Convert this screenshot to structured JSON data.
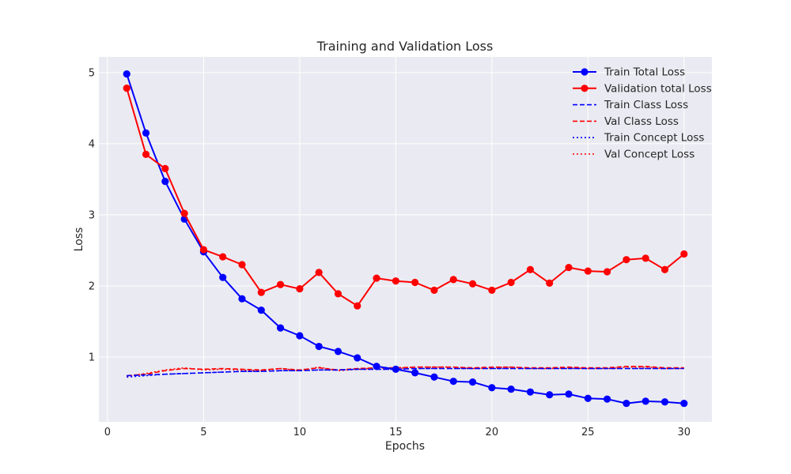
{
  "chart_data": {
    "type": "line",
    "title": "Training and Validation Loss",
    "xlabel": "Epochs",
    "ylabel": "Loss",
    "xlim": [
      -0.45,
      31.45
    ],
    "ylim": [
      0.09,
      5.22
    ],
    "xticks": [
      0,
      5,
      10,
      15,
      20,
      25,
      30
    ],
    "yticks": [
      1,
      2,
      3,
      4,
      5
    ],
    "grid": true,
    "legend_position": "top-right",
    "background_color": "#eaeaf2",
    "x": [
      1,
      2,
      3,
      4,
      5,
      6,
      7,
      8,
      9,
      10,
      11,
      12,
      13,
      14,
      15,
      16,
      17,
      18,
      19,
      20,
      21,
      22,
      23,
      24,
      25,
      26,
      27,
      28,
      29,
      30
    ],
    "series": [
      {
        "name": "Train Total Loss",
        "color": "#0000ff",
        "style": "solid",
        "marker": true,
        "values": [
          4.98,
          4.15,
          3.47,
          2.94,
          2.48,
          2.12,
          1.82,
          1.66,
          1.41,
          1.3,
          1.15,
          1.08,
          0.99,
          0.87,
          0.83,
          0.78,
          0.72,
          0.66,
          0.65,
          0.57,
          0.55,
          0.51,
          0.47,
          0.48,
          0.42,
          0.41,
          0.35,
          0.38,
          0.37,
          0.35
        ]
      },
      {
        "name": "Validation total Loss",
        "color": "#ff0000",
        "style": "solid",
        "marker": true,
        "values": [
          4.78,
          3.85,
          3.65,
          3.02,
          2.51,
          2.41,
          2.3,
          1.91,
          2.02,
          1.96,
          2.19,
          1.89,
          1.72,
          2.11,
          2.07,
          2.05,
          1.94,
          2.09,
          2.03,
          1.94,
          2.05,
          2.23,
          2.04,
          2.26,
          2.21,
          2.2,
          2.37,
          2.39,
          2.23,
          2.45
        ]
      },
      {
        "name": "Train Class Loss",
        "color": "#0000ff",
        "style": "dashed",
        "marker": false,
        "values": [
          0.74,
          0.75,
          0.76,
          0.77,
          0.78,
          0.79,
          0.8,
          0.8,
          0.81,
          0.81,
          0.82,
          0.82,
          0.83,
          0.83,
          0.83,
          0.84,
          0.84,
          0.84,
          0.84,
          0.84,
          0.84,
          0.84,
          0.84,
          0.84,
          0.84,
          0.84,
          0.84,
          0.84,
          0.84,
          0.84
        ]
      },
      {
        "name": "Val Class Loss",
        "color": "#ff0000",
        "style": "dashed",
        "marker": false,
        "values": [
          0.74,
          0.76,
          0.81,
          0.84,
          0.83,
          0.84,
          0.83,
          0.82,
          0.84,
          0.82,
          0.85,
          0.82,
          0.84,
          0.85,
          0.85,
          0.86,
          0.86,
          0.86,
          0.85,
          0.86,
          0.86,
          0.85,
          0.85,
          0.86,
          0.85,
          0.85,
          0.87,
          0.87,
          0.85,
          0.85
        ]
      },
      {
        "name": "Train Concept Loss",
        "color": "#0000ff",
        "style": "dotted",
        "marker": false,
        "values": [
          0.72,
          0.74,
          0.76,
          0.77,
          0.78,
          0.79,
          0.8,
          0.8,
          0.81,
          0.81,
          0.82,
          0.82,
          0.83,
          0.83,
          0.83,
          0.84,
          0.84,
          0.84,
          0.84,
          0.84,
          0.84,
          0.84,
          0.84,
          0.84,
          0.84,
          0.84,
          0.84,
          0.84,
          0.84,
          0.84
        ]
      },
      {
        "name": "Val Concept Loss",
        "color": "#ff0000",
        "style": "dotted",
        "marker": false,
        "values": [
          0.73,
          0.77,
          0.82,
          0.85,
          0.82,
          0.83,
          0.82,
          0.81,
          0.84,
          0.81,
          0.86,
          0.81,
          0.83,
          0.85,
          0.84,
          0.86,
          0.86,
          0.86,
          0.84,
          0.85,
          0.86,
          0.84,
          0.84,
          0.85,
          0.84,
          0.84,
          0.86,
          0.86,
          0.84,
          0.84
        ]
      }
    ]
  }
}
